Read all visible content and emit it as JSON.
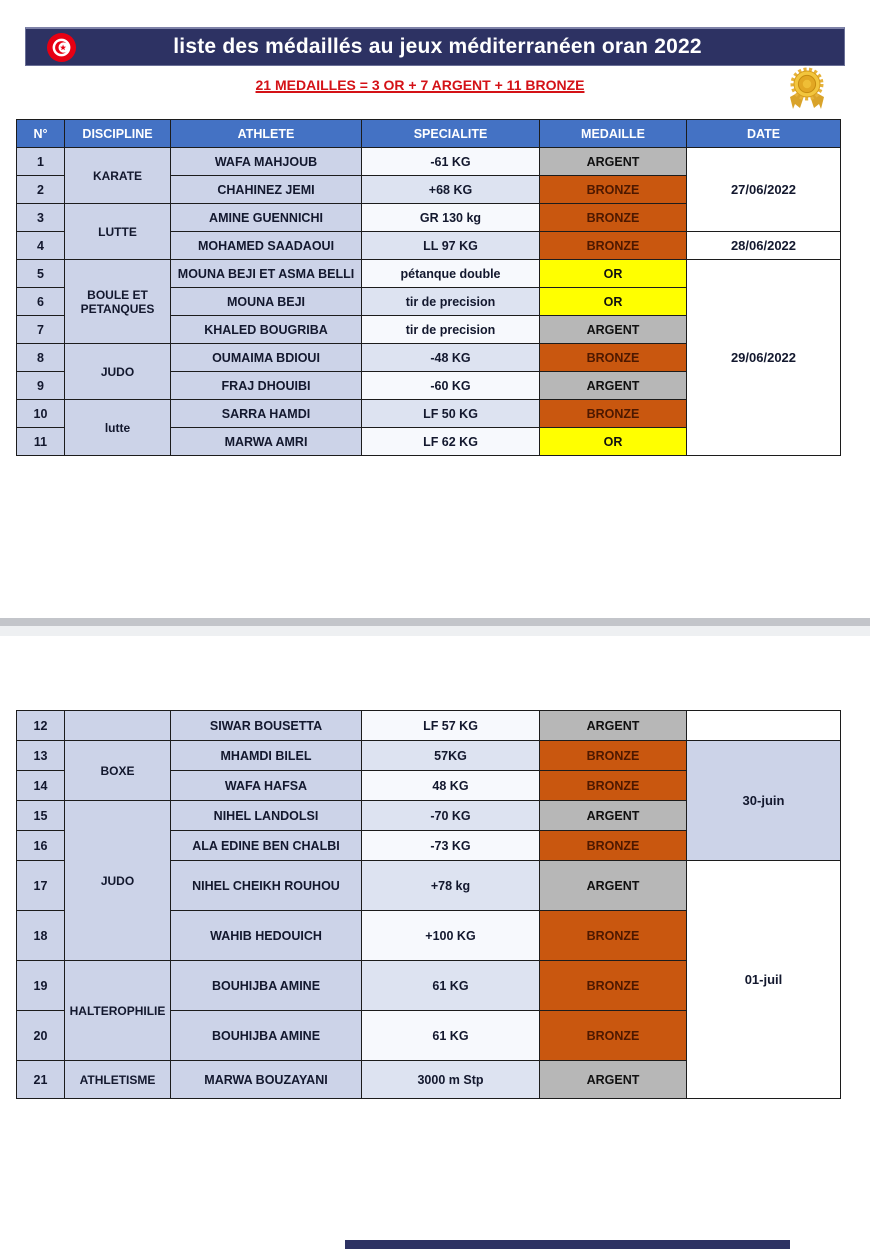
{
  "page": {
    "title": "liste des médaillés au jeux méditerranéen oran 2022",
    "subtitle": "21 MEDAILLES = 3 OR + 7 ARGENT + 11 BRONZE"
  },
  "icons": {
    "flag": "tunisia-flag-emblem",
    "medal": "gold-medal-rosette"
  },
  "colors": {
    "banner_navy": "#2d3263",
    "table_header_blue": "#4472c4",
    "row_fill_lavender": "#ccd3e8",
    "medal_or": "#ffff00",
    "medal_argent": "#b7b7b7",
    "medal_bronze": "#c9570f",
    "subtitle_red": "#d41217"
  },
  "table": {
    "columns": [
      "N°",
      "DISCIPLINE",
      "ATHLETE",
      "SPECIALITE",
      "MEDAILLE",
      "DATE"
    ],
    "sections": [
      {
        "name": "page-1",
        "rows": [
          {
            "num": "1",
            "discipline": {
              "label": "KARATE",
              "rowspan": 2
            },
            "athlete": "WAFA MAHJOUB",
            "specialite": "-61 KG",
            "medaille": "ARGENT",
            "date": {
              "label": "27/06/2022",
              "rowspan": 3
            }
          },
          {
            "num": "2",
            "athlete": "CHAHINEZ JEMI",
            "specialite": "+68 KG",
            "medaille": "BRONZE"
          },
          {
            "num": "3",
            "discipline": {
              "label": "LUTTE",
              "rowspan": 2
            },
            "athlete": "AMINE GUENNICHI",
            "specialite": "GR 130 kg",
            "medaille": "BRONZE"
          },
          {
            "num": "4",
            "athlete": "MOHAMED SAADAOUI",
            "specialite": "LL 97 KG",
            "medaille": "BRONZE",
            "date": {
              "label": "28/06/2022",
              "rowspan": 1
            }
          },
          {
            "num": "5",
            "discipline": {
              "label": "BOULE ET PETANQUES",
              "rowspan": 3
            },
            "athlete": "MOUNA BEJI ET ASMA BELLI",
            "specialite": "pétanque double",
            "medaille": "OR",
            "date": {
              "label": "29/06/2022",
              "rowspan": 7
            }
          },
          {
            "num": "6",
            "athlete": "MOUNA BEJI",
            "specialite": "tir de precision",
            "medaille": "OR"
          },
          {
            "num": "7",
            "athlete": "KHALED BOUGRIBA",
            "specialite": "tir de precision",
            "medaille": "ARGENT"
          },
          {
            "num": "8",
            "discipline": {
              "label": "JUDO",
              "rowspan": 2
            },
            "athlete": "OUMAIMA BDIOUI",
            "specialite": "-48 KG",
            "medaille": "BRONZE"
          },
          {
            "num": "9",
            "athlete": "FRAJ DHOUIBI",
            "specialite": "-60 KG",
            "medaille": "ARGENT"
          },
          {
            "num": "10",
            "discipline": {
              "label": "lutte",
              "rowspan": 2
            },
            "athlete": "SARRA HAMDI",
            "specialite": "LF 50 KG",
            "medaille": "BRONZE"
          },
          {
            "num": "11",
            "athlete": "MARWA AMRI",
            "specialite": "LF 62 KG",
            "medaille": "OR"
          }
        ]
      },
      {
        "name": "page-2",
        "rows": [
          {
            "num": "12",
            "discipline": {
              "label": "",
              "rowspan": 1
            },
            "athlete": "SIWAR BOUSETTA",
            "specialite": "LF 57 KG",
            "medaille": "ARGENT",
            "date": {
              "label": "",
              "rowspan": 1
            }
          },
          {
            "num": "13",
            "discipline": {
              "label": "BOXE",
              "rowspan": 2
            },
            "athlete": "MHAMDI BILEL",
            "specialite": "57KG",
            "medaille": "BRONZE",
            "date": {
              "label": "30-juin",
              "rowspan": 4,
              "shaded": true
            }
          },
          {
            "num": "14",
            "athlete": "WAFA HAFSA",
            "specialite": "48 KG",
            "medaille": "BRONZE"
          },
          {
            "num": "15",
            "discipline": {
              "label": "JUDO",
              "rowspan": 4
            },
            "athlete": "NIHEL LANDOLSI",
            "specialite": "-70 KG",
            "medaille": "ARGENT"
          },
          {
            "num": "16",
            "athlete": "ALA EDINE BEN CHALBI",
            "specialite": "-73 KG",
            "medaille": "BRONZE"
          },
          {
            "num": "17",
            "athlete": "NIHEL CHEIKH ROUHOU",
            "specialite": "+78 kg",
            "medaille": "ARGENT",
            "date": {
              "label": "01-juil",
              "rowspan": 5
            }
          },
          {
            "num": "18",
            "athlete": "WAHIB HEDOUICH",
            "specialite": "+100 KG",
            "medaille": "BRONZE"
          },
          {
            "num": "19",
            "discipline": {
              "label": "HALTEROPHILIE",
              "rowspan": 2
            },
            "athlete": "BOUHIJBA AMINE",
            "specialite": "61 KG",
            "medaille": "BRONZE"
          },
          {
            "num": "20",
            "athlete": "BOUHIJBA AMINE",
            "specialite": "61 KG",
            "medaille": "BRONZE"
          },
          {
            "num": "21",
            "discipline": {
              "label": "ATHLETISME",
              "rowspan": 1
            },
            "athlete": "MARWA BOUZAYANI",
            "specialite": "3000 m Stp",
            "medaille": "ARGENT"
          }
        ]
      }
    ]
  }
}
